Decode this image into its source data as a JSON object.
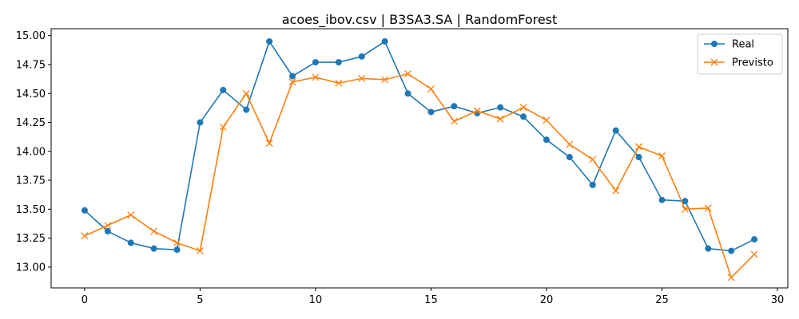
{
  "chart_data": {
    "type": "line",
    "title": "acoes_ibov.csv | B3SA3.SA | RandomForest",
    "xlabel": "",
    "ylabel": "",
    "x": [
      0,
      1,
      2,
      3,
      4,
      5,
      6,
      7,
      8,
      9,
      10,
      11,
      12,
      13,
      14,
      15,
      16,
      17,
      18,
      19,
      20,
      21,
      22,
      23,
      24,
      25,
      26,
      27,
      28,
      29
    ],
    "xlim": [
      -1.45,
      30.45
    ],
    "ylim": [
      12.82,
      15.06
    ],
    "xticks": [
      0,
      5,
      10,
      15,
      20,
      25,
      30
    ],
    "yticks": [
      13.0,
      13.25,
      13.5,
      13.75,
      14.0,
      14.25,
      14.5,
      14.75,
      15.0
    ],
    "legend_position": "top-right",
    "grid": false,
    "series": [
      {
        "name": "Real",
        "color": "#1f77b4",
        "marker": "circle",
        "values": [
          13.49,
          13.31,
          13.21,
          13.16,
          13.15,
          14.25,
          14.53,
          14.36,
          14.95,
          14.65,
          14.77,
          14.77,
          14.82,
          14.95,
          14.5,
          14.34,
          14.39,
          14.33,
          14.38,
          14.3,
          14.1,
          13.95,
          13.71,
          14.18,
          13.95,
          13.58,
          13.57,
          13.16,
          13.14,
          13.24
        ]
      },
      {
        "name": "Previsto",
        "color": "#ff7f0e",
        "marker": "x",
        "values": [
          13.27,
          13.36,
          13.45,
          13.31,
          13.21,
          13.14,
          14.21,
          14.5,
          14.07,
          14.6,
          14.64,
          14.59,
          14.63,
          14.62,
          14.67,
          14.54,
          14.26,
          14.35,
          14.28,
          14.38,
          14.27,
          14.06,
          13.93,
          13.66,
          14.04,
          13.96,
          13.5,
          13.51,
          12.91,
          13.11
        ]
      }
    ]
  }
}
